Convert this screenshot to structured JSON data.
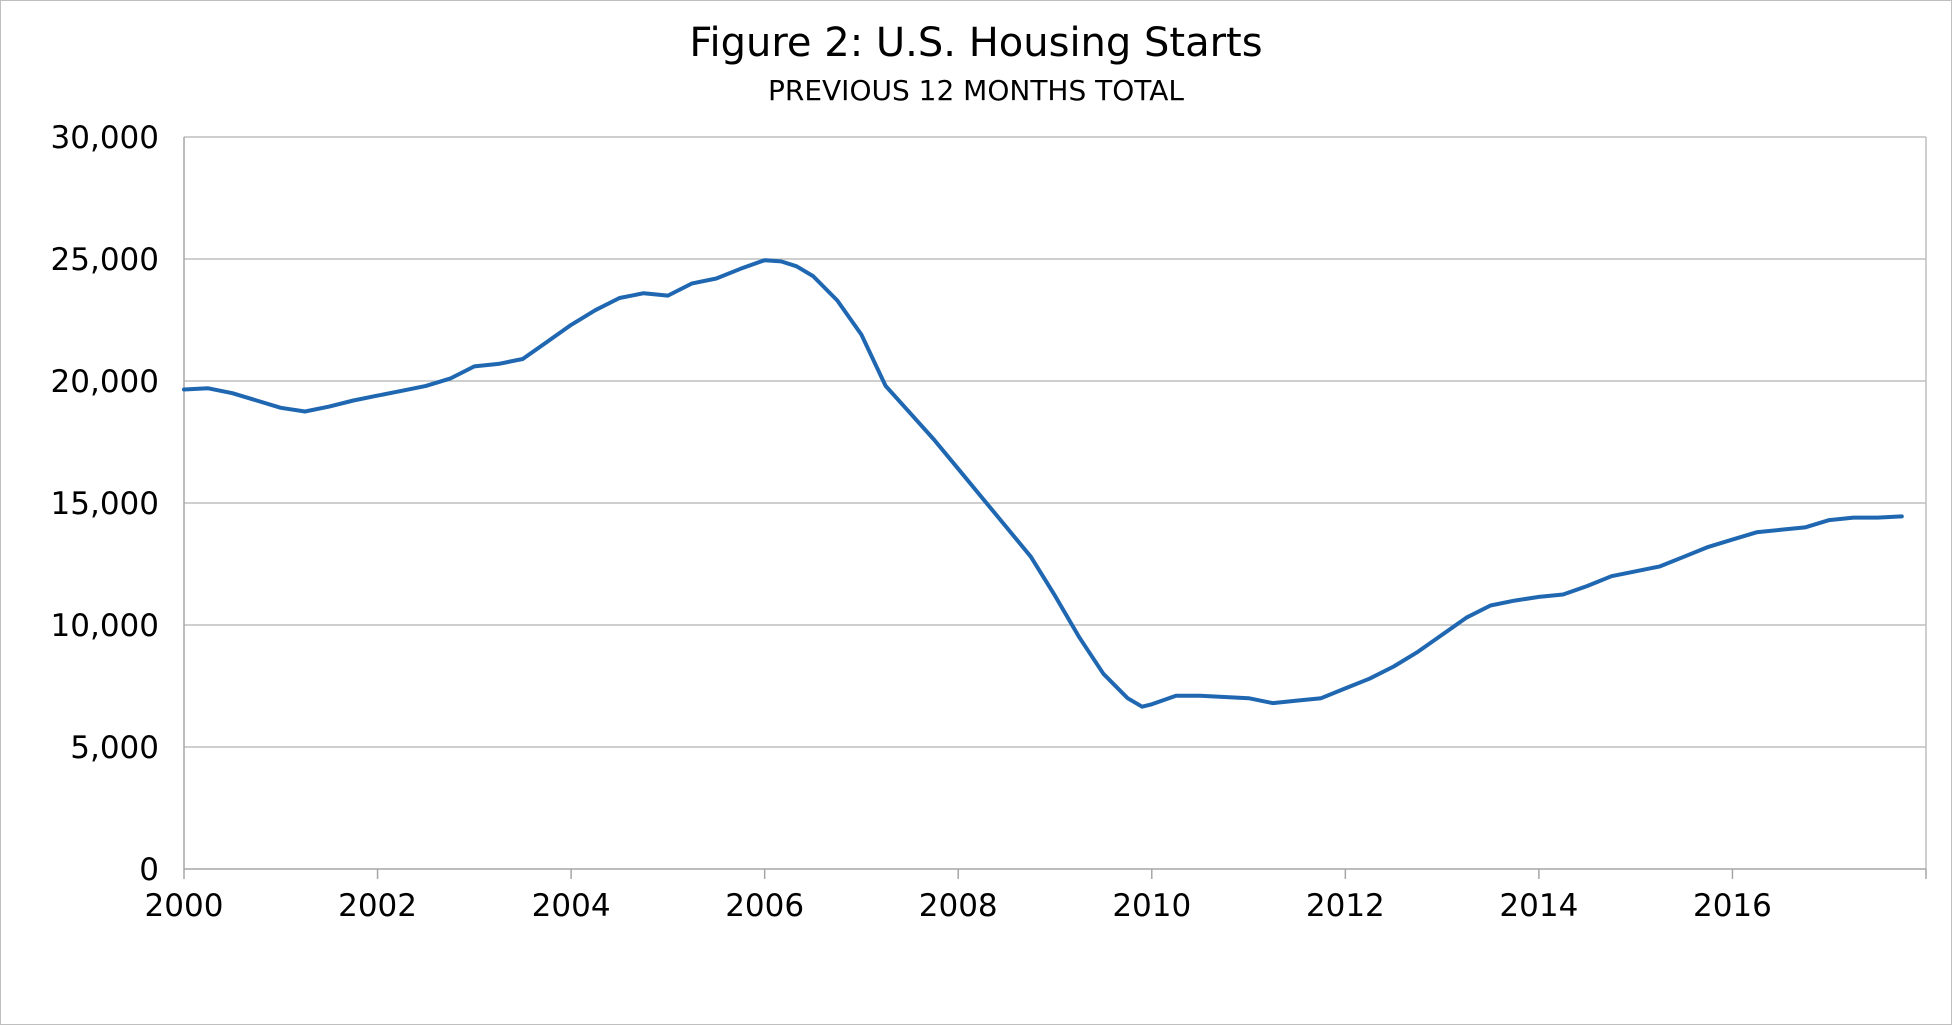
{
  "chart_data": {
    "type": "line",
    "title": "Figure 2: U.S. Housing Starts",
    "subtitle": "PREVIOUS 12 MONTHS TOTAL",
    "xlabel": "",
    "ylabel": "",
    "x_ticks": [
      "2000",
      "2002",
      "2004",
      "2006",
      "2008",
      "2010",
      "2012",
      "2014",
      "2016"
    ],
    "y_ticks": [
      "0",
      "5,000",
      "10,000",
      "15,000",
      "20,000",
      "25,000",
      "30,000"
    ],
    "xlim": [
      2000,
      2018
    ],
    "ylim": [
      0,
      30000
    ],
    "grid": "horizontal",
    "legend": "none",
    "series_color": "#1f67b1",
    "series": [
      {
        "x": [
          2000.0,
          2000.25,
          2000.5,
          2000.75,
          2001.0,
          2001.25,
          2001.5,
          2001.75,
          2002.0,
          2002.25,
          2002.5,
          2002.75,
          2003.0,
          2003.25,
          2003.5,
          2003.75,
          2004.0,
          2004.25,
          2004.5,
          2004.75,
          2005.0,
          2005.25,
          2005.5,
          2005.75,
          2006.0,
          2006.17,
          2006.33,
          2006.5,
          2006.75,
          2007.0,
          2007.25,
          2007.5,
          2007.75,
          2008.0,
          2008.25,
          2008.5,
          2008.75,
          2009.0,
          2009.25,
          2009.5,
          2009.75,
          2009.9,
          2010.0,
          2010.25,
          2010.5,
          2010.75,
          2011.0,
          2011.25,
          2011.5,
          2011.75,
          2012.0,
          2012.25,
          2012.5,
          2012.75,
          2013.0,
          2013.25,
          2013.5,
          2013.75,
          2014.0,
          2014.25,
          2014.5,
          2014.75,
          2015.0,
          2015.25,
          2015.5,
          2015.75,
          2016.0,
          2016.25,
          2016.5,
          2016.75,
          2017.0,
          2017.25,
          2017.5,
          2017.75
        ],
        "values": [
          19650,
          19700,
          19500,
          19200,
          18900,
          18750,
          18950,
          19200,
          19400,
          19600,
          19800,
          20100,
          20600,
          20700,
          20900,
          21600,
          22300,
          22900,
          23400,
          23600,
          23500,
          24000,
          24200,
          24600,
          24950,
          24900,
          24700,
          24300,
          23300,
          21900,
          19800,
          18700,
          17600,
          16400,
          15200,
          14000,
          12800,
          11200,
          9500,
          8000,
          7000,
          6650,
          6750,
          7100,
          7100,
          7050,
          7000,
          6800,
          6900,
          7000,
          7400,
          7800,
          8300,
          8900,
          9600,
          10300,
          10800,
          11000,
          11150,
          11250,
          11600,
          12000,
          12200,
          12400,
          12800,
          13200,
          13500,
          13800,
          13900,
          14000,
          14300,
          14400,
          14400,
          14450
        ]
      }
    ]
  }
}
